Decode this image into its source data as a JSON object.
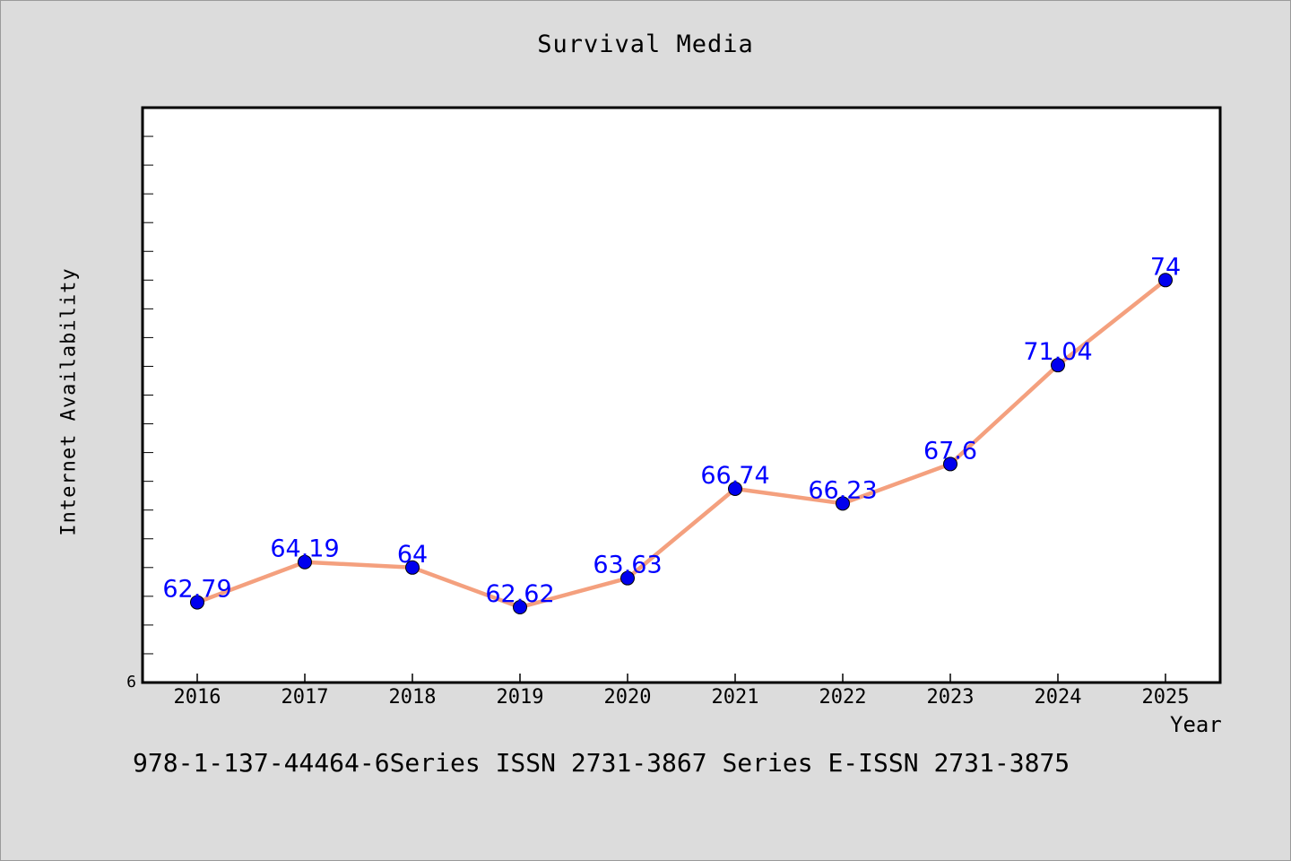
{
  "chart_data": {
    "type": "line",
    "title": "Survival Media",
    "xlabel": "Year",
    "ylabel": "Internet Availability",
    "categories": [
      "2016",
      "2017",
      "2018",
      "2019",
      "2020",
      "2021",
      "2022",
      "2023",
      "2024",
      "2025"
    ],
    "series": [
      {
        "values": [
          62.79,
          64.19,
          64,
          62.62,
          63.63,
          66.74,
          66.23,
          67.6,
          71.04,
          74
        ],
        "labels": [
          "62.79",
          "64.19",
          "64",
          "62.62",
          "63.63",
          "66.74",
          "66.23",
          "67.6",
          "71.04",
          "74"
        ],
        "line_color": "#f4a07e",
        "marker_color": "#0000ee"
      }
    ],
    "ylim": [
      60,
      80
    ],
    "y_tick_labels": [
      "6"
    ],
    "label_color": "#0000ff",
    "grid": false,
    "legend": "none"
  },
  "footer": {
    "text": "978-1-137-44464-6Series ISSN 2731-3867 Series E-ISSN 2731-3875"
  },
  "colors": {
    "background": "#dcdcdc",
    "plot_background": "#ffffff",
    "axis": "#000000"
  }
}
